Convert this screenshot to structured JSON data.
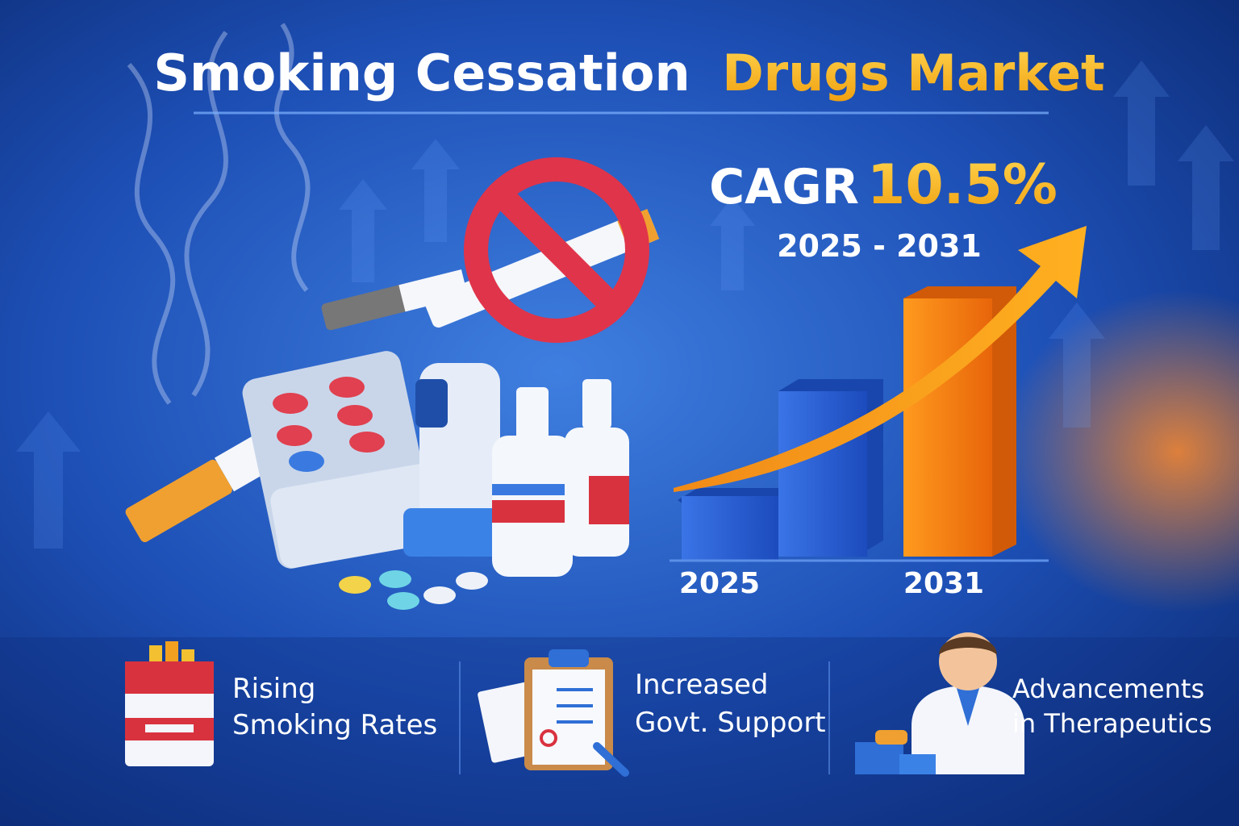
{
  "header": {
    "title_part1": "Smoking Cessation",
    "title_part2": "Drugs Market"
  },
  "growth": {
    "label": "CAGR",
    "rate": "10.5%",
    "period": "2025 - 2031"
  },
  "bar_chart": {
    "labels": [
      "2025",
      "2031"
    ]
  },
  "features": [
    {
      "lines": [
        "Rising",
        "Smoking Rates"
      ]
    },
    {
      "lines": [
        "Increased",
        "Govt. Support"
      ]
    },
    {
      "lines": [
        "Advancements",
        "in Therapeutics"
      ]
    }
  ]
}
